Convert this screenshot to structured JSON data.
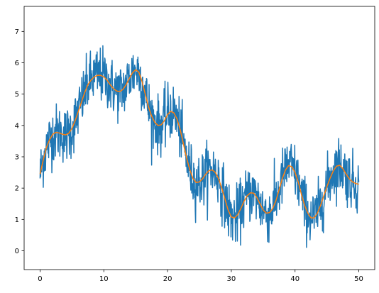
{
  "chart_data": {
    "type": "line",
    "title": "",
    "xlabel": "",
    "ylabel": "",
    "xlim": [
      -2.5,
      52.5
    ],
    "ylim": [
      -0.6,
      7.8
    ],
    "x_ticks": [
      0,
      10,
      20,
      30,
      40,
      50
    ],
    "y_ticks": [
      0,
      1,
      2,
      3,
      4,
      5,
      6,
      7
    ],
    "grid": false,
    "legend": "none",
    "series": [
      {
        "color": "#1f77b4",
        "kind": "noisy",
        "x": [
          0,
          0.5,
          1,
          1.5,
          2,
          2.5,
          3,
          3.5,
          4,
          4.5,
          5,
          5.5,
          6,
          6.5,
          7,
          7.5,
          8,
          8.5,
          9,
          9.5,
          10,
          10.5,
          11,
          11.5,
          12,
          12.5,
          13,
          13.5,
          14,
          14.5,
          15,
          15.5,
          16,
          16.5,
          17,
          17.5,
          18,
          18.5,
          19,
          19.5,
          20,
          20.5,
          21,
          21.5,
          22,
          22.5,
          23,
          23.5,
          24,
          24.5,
          25,
          25.5,
          26,
          26.5,
          27,
          27.5,
          28,
          28.5,
          29,
          29.5,
          30,
          30.5,
          31,
          31.5,
          32,
          32.5,
          33,
          33.5,
          34,
          34.5,
          35,
          35.5,
          36,
          36.5,
          37,
          37.5,
          38,
          38.5,
          39,
          39.5,
          40,
          40.5,
          41,
          41.5,
          42,
          42.5,
          43,
          43.5,
          44,
          44.5,
          45,
          45.5,
          46,
          46.5,
          47,
          47.5,
          48,
          48.5,
          49,
          49.5,
          50
        ],
        "y": [
          2.45,
          2.95,
          3.3,
          3.55,
          3.72,
          3.78,
          3.76,
          3.72,
          3.7,
          3.75,
          3.9,
          4.15,
          4.45,
          4.75,
          5.05,
          5.3,
          5.45,
          5.55,
          5.6,
          5.6,
          5.55,
          5.45,
          5.3,
          5.18,
          5.1,
          5.08,
          5.15,
          5.3,
          5.5,
          5.68,
          5.78,
          5.7,
          5.4,
          5.0,
          4.6,
          4.3,
          4.1,
          4.0,
          4.02,
          4.15,
          4.35,
          4.45,
          4.4,
          4.2,
          3.85,
          3.4,
          2.95,
          2.58,
          2.3,
          2.18,
          2.2,
          2.3,
          2.45,
          2.56,
          2.58,
          2.5,
          2.3,
          2.0,
          1.65,
          1.3,
          1.08,
          1.05,
          1.15,
          1.35,
          1.58,
          1.76,
          1.85,
          1.84,
          1.7,
          1.5,
          1.3,
          1.2,
          1.22,
          1.35,
          1.6,
          1.95,
          2.3,
          2.58,
          2.72,
          2.68,
          2.5,
          2.2,
          1.8,
          1.45,
          1.2,
          1.05,
          1.05,
          1.2,
          1.45,
          1.75,
          2.05,
          2.32,
          2.55,
          2.7,
          2.73,
          2.62,
          2.45,
          2.3,
          2.2,
          2.15,
          2.12
        ],
        "noise_sd": 0.45
      },
      {
        "color": "#ff7f0e",
        "kind": "smooth",
        "x": [
          0,
          0.5,
          1,
          1.5,
          2,
          2.5,
          3,
          3.5,
          4,
          4.5,
          5,
          5.5,
          6,
          6.5,
          7,
          7.5,
          8,
          8.5,
          9,
          9.5,
          10,
          10.5,
          11,
          11.5,
          12,
          12.5,
          13,
          13.5,
          14,
          14.5,
          15,
          15.5,
          16,
          16.5,
          17,
          17.5,
          18,
          18.5,
          19,
          19.5,
          20,
          20.5,
          21,
          21.5,
          22,
          22.5,
          23,
          23.5,
          24,
          24.5,
          25,
          25.5,
          26,
          26.5,
          27,
          27.5,
          28,
          28.5,
          29,
          29.5,
          30,
          30.5,
          31,
          31.5,
          32,
          32.5,
          33,
          33.5,
          34,
          34.5,
          35,
          35.5,
          36,
          36.5,
          37,
          37.5,
          38,
          38.5,
          39,
          39.5,
          40,
          40.5,
          41,
          41.5,
          42,
          42.5,
          43,
          43.5,
          44,
          44.5,
          45,
          45.5,
          46,
          46.5,
          47,
          47.5,
          48,
          48.5,
          49,
          49.5,
          50
        ],
        "y": [
          2.45,
          2.9,
          3.3,
          3.55,
          3.72,
          3.78,
          3.76,
          3.72,
          3.7,
          3.75,
          3.9,
          4.15,
          4.45,
          4.75,
          5.05,
          5.3,
          5.45,
          5.55,
          5.6,
          5.6,
          5.55,
          5.45,
          5.3,
          5.18,
          5.1,
          5.08,
          5.15,
          5.3,
          5.5,
          5.68,
          5.78,
          5.7,
          5.4,
          5.0,
          4.6,
          4.3,
          4.1,
          4.0,
          4.02,
          4.15,
          4.35,
          4.45,
          4.4,
          4.2,
          3.85,
          3.4,
          2.95,
          2.58,
          2.3,
          2.18,
          2.2,
          2.3,
          2.45,
          2.56,
          2.58,
          2.5,
          2.3,
          2.0,
          1.65,
          1.3,
          1.08,
          1.05,
          1.15,
          1.35,
          1.58,
          1.76,
          1.85,
          1.84,
          1.7,
          1.5,
          1.3,
          1.2,
          1.22,
          1.35,
          1.6,
          1.95,
          2.3,
          2.58,
          2.72,
          2.68,
          2.5,
          2.2,
          1.8,
          1.45,
          1.2,
          1.05,
          1.05,
          1.2,
          1.45,
          1.75,
          2.05,
          2.32,
          2.55,
          2.7,
          2.73,
          2.62,
          2.45,
          2.3,
          2.2,
          2.15,
          2.12
        ]
      }
    ]
  }
}
